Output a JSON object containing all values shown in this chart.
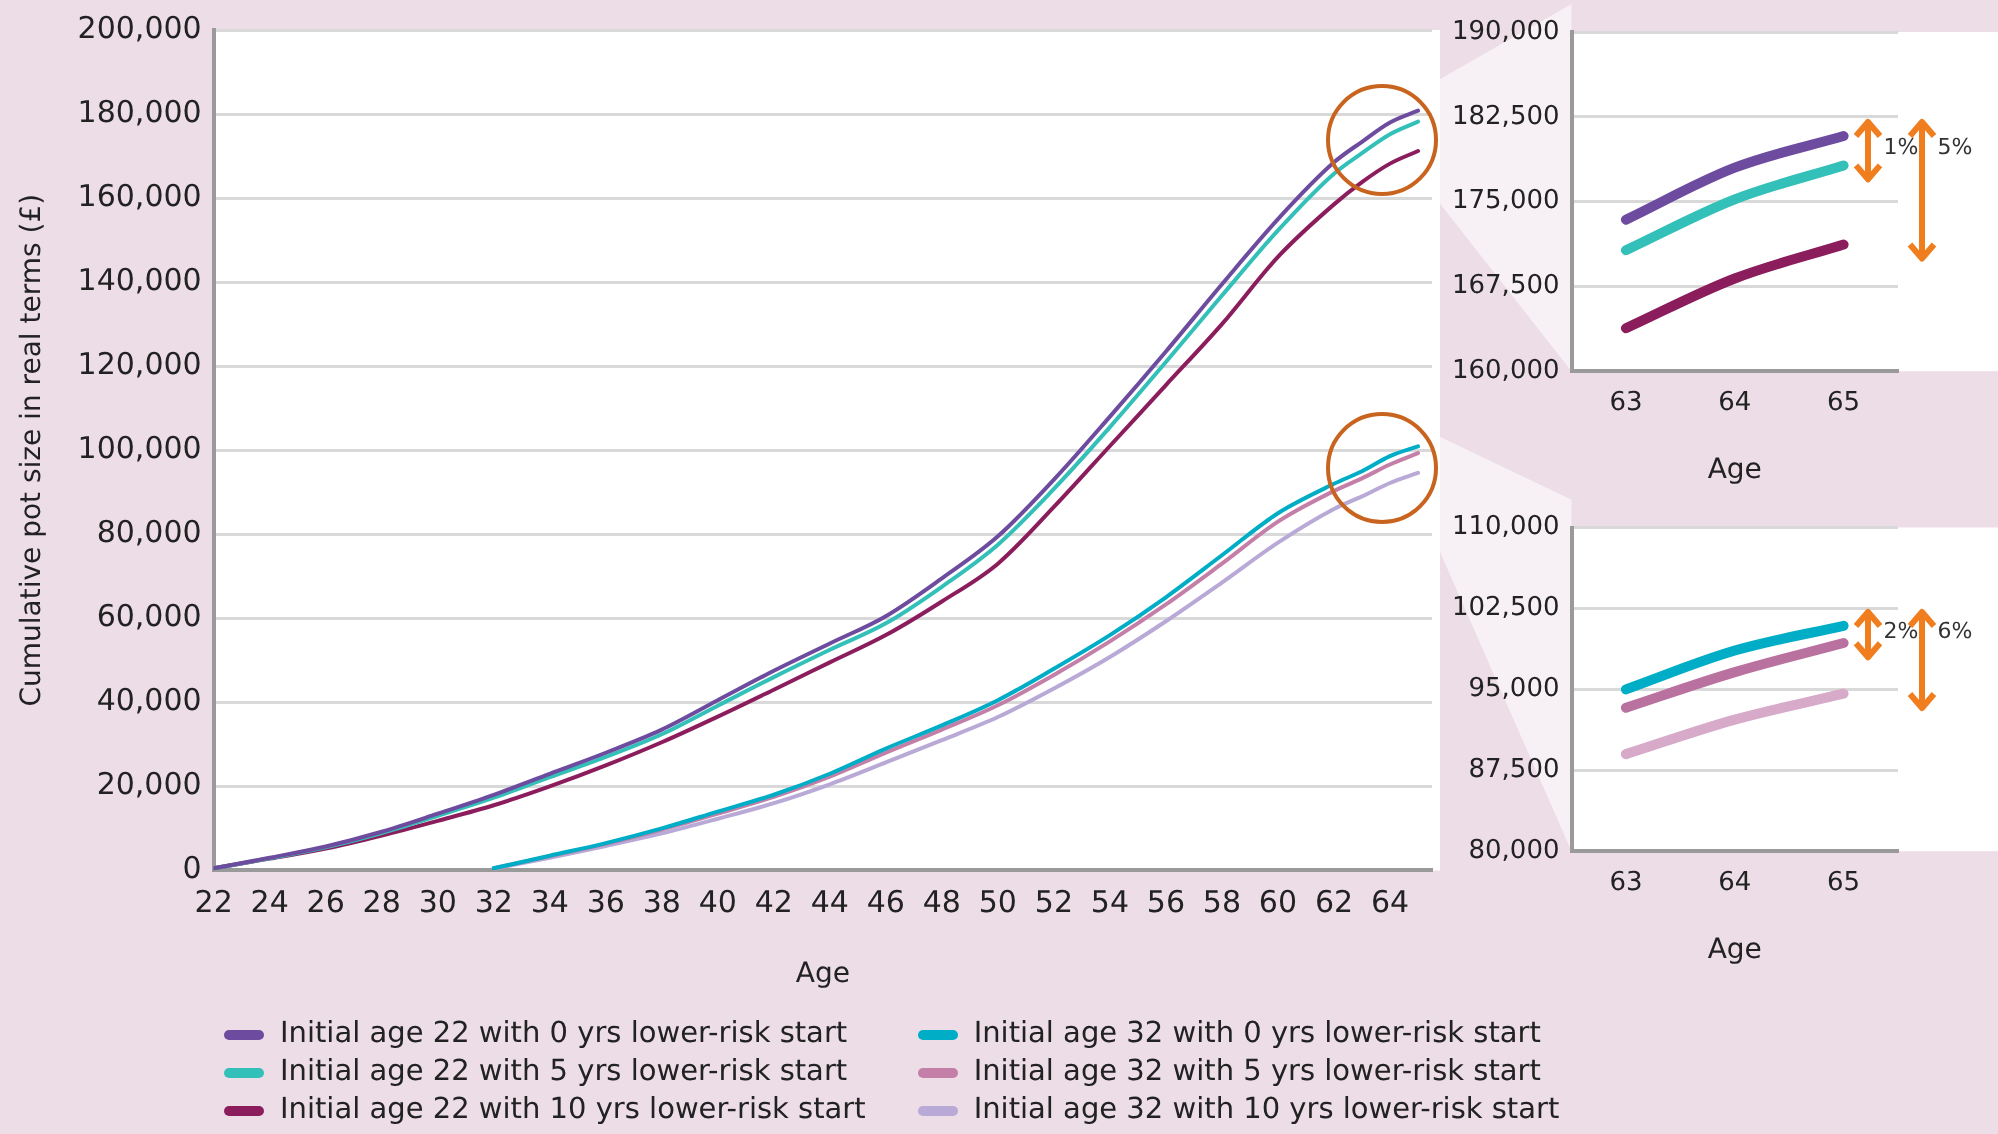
{
  "chart_data": [
    {
      "type": "line",
      "xlabel": "Age",
      "ylabel": "Cumulative pot size in real terms (£)",
      "xlim": [
        22,
        65.5
      ],
      "xticks": [
        22,
        24,
        26,
        28,
        30,
        32,
        34,
        36,
        38,
        40,
        42,
        44,
        46,
        48,
        50,
        52,
        54,
        56,
        58,
        60,
        62,
        64
      ],
      "ylim": [
        0,
        200000
      ],
      "yticks": [
        {
          "value": 0,
          "label": "0"
        },
        {
          "value": 20000,
          "label": "20,000"
        },
        {
          "value": 40000,
          "label": "40,000"
        },
        {
          "value": 60000,
          "label": "60,000"
        },
        {
          "value": 80000,
          "label": "80,000"
        },
        {
          "value": 100000,
          "label": "100,000"
        },
        {
          "value": 120000,
          "label": "120,000"
        },
        {
          "value": 140000,
          "label": "140,000"
        },
        {
          "value": 160000,
          "label": "160,000"
        },
        {
          "value": 180000,
          "label": "180,000"
        },
        {
          "value": 200000,
          "label": "200,000"
        }
      ],
      "grid": "y",
      "legend": "bottom",
      "series": [
        {
          "name": "Initial age 22 with 0 yrs lower-risk start",
          "color": "#6d4c9f",
          "x": [
            22,
            24,
            26,
            28,
            30,
            32,
            34,
            36,
            38,
            40,
            42,
            44,
            46,
            48,
            50,
            52,
            54,
            56,
            58,
            60,
            62,
            63,
            64,
            65
          ],
          "values": [
            500,
            3000,
            5700,
            9200,
            13500,
            18000,
            23000,
            28000,
            33500,
            40500,
            47500,
            54000,
            60500,
            69500,
            79500,
            93000,
            108000,
            123500,
            139500,
            155000,
            168500,
            173400,
            178000,
            180800
          ]
        },
        {
          "name": "Initial age 22 with 5 yrs lower-risk start",
          "color": "#33c0b8",
          "x": [
            22,
            24,
            26,
            28,
            30,
            32,
            34,
            36,
            38,
            40,
            42,
            44,
            46,
            48,
            50,
            52,
            54,
            56,
            58,
            60,
            62,
            63,
            64,
            65
          ],
          "values": [
            500,
            2900,
            5500,
            8900,
            13000,
            17300,
            22200,
            27000,
            32400,
            39200,
            46000,
            52500,
            58800,
            67500,
            77500,
            90800,
            105500,
            121000,
            136800,
            152300,
            165800,
            170700,
            175200,
            178200
          ]
        },
        {
          "name": "Initial age 22 with 10 yrs lower-risk start",
          "color": "#8c1d5d",
          "x": [
            22,
            24,
            26,
            28,
            30,
            32,
            34,
            36,
            38,
            40,
            42,
            44,
            46,
            48,
            50,
            52,
            54,
            56,
            58,
            60,
            62,
            63,
            64,
            65
          ],
          "values": [
            500,
            2800,
            5200,
            8300,
            11800,
            15500,
            20000,
            25000,
            30500,
            36600,
            43000,
            49500,
            56000,
            64000,
            73000,
            86500,
            101000,
            115500,
            130000,
            146000,
            158500,
            163800,
            168200,
            171200
          ]
        },
        {
          "name": "Initial age 32 with 0 yrs lower-risk start",
          "color": "#00adc6",
          "x": [
            32,
            34,
            36,
            38,
            40,
            42,
            44,
            46,
            48,
            50,
            52,
            54,
            56,
            58,
            60,
            62,
            63,
            64,
            65
          ],
          "values": [
            500,
            3500,
            6500,
            10000,
            14000,
            18000,
            23000,
            29000,
            34500,
            40500,
            48000,
            56000,
            65000,
            75000,
            85000,
            92000,
            95000,
            98600,
            100900
          ]
        },
        {
          "name": "Initial age 32 with 5 yrs lower-risk start",
          "color": "#c47fa8",
          "x": [
            32,
            34,
            36,
            38,
            40,
            42,
            44,
            46,
            48,
            50,
            52,
            54,
            56,
            58,
            60,
            62,
            63,
            64,
            65
          ],
          "values": [
            500,
            3400,
            6300,
            9700,
            13500,
            17500,
            22300,
            28000,
            33500,
            39300,
            46500,
            54500,
            63300,
            73000,
            83000,
            90300,
            93300,
            96600,
            99300
          ]
        },
        {
          "name": "Initial age 32 with 10 yrs lower-risk start",
          "color": "#b8a9d6",
          "x": [
            32,
            34,
            36,
            38,
            40,
            42,
            44,
            46,
            48,
            50,
            52,
            54,
            56,
            58,
            60,
            62,
            63,
            64,
            65
          ],
          "values": [
            400,
            3000,
            5800,
            8800,
            12300,
            16000,
            20500,
            25700,
            31000,
            36500,
            43300,
            50800,
            59300,
            68500,
            78000,
            86000,
            89000,
            92200,
            94600
          ]
        }
      ]
    },
    {
      "type": "line",
      "xlabel": "Age",
      "categories": [
        "63",
        "64",
        "65"
      ],
      "ylim": [
        160000,
        190000
      ],
      "yticks": [
        {
          "value": 160000,
          "label": "160,000"
        },
        {
          "value": 167500,
          "label": "167,500"
        },
        {
          "value": 175000,
          "label": "175,000"
        },
        {
          "value": 182500,
          "label": "182,500"
        },
        {
          "value": 190000,
          "label": "190,000"
        }
      ],
      "grid": "y",
      "annotations": [
        "1%",
        "5%"
      ],
      "series": [
        {
          "color": "#6d4c9f",
          "values": [
            173400,
            178000,
            180800
          ]
        },
        {
          "color": "#33c0b8",
          "values": [
            170700,
            175200,
            178200
          ]
        },
        {
          "color": "#8c1d5d",
          "values": [
            163800,
            168200,
            171200
          ]
        }
      ]
    },
    {
      "type": "line",
      "xlabel": "Age",
      "categories": [
        "63",
        "64",
        "65"
      ],
      "ylim": [
        80000,
        110000
      ],
      "yticks": [
        {
          "value": 80000,
          "label": "80,000"
        },
        {
          "value": 87500,
          "label": "87,500"
        },
        {
          "value": 95000,
          "label": "95,000"
        },
        {
          "value": 102500,
          "label": "102,500"
        },
        {
          "value": 110000,
          "label": "110,000"
        }
      ],
      "grid": "y",
      "annotations": [
        "2%",
        "6%"
      ],
      "series": [
        {
          "color": "#00adc6",
          "values": [
            95000,
            98600,
            100900
          ]
        },
        {
          "color": "#b9719f",
          "values": [
            93300,
            96600,
            99300
          ]
        },
        {
          "color": "#d6aac8",
          "values": [
            89000,
            92200,
            94600
          ]
        }
      ]
    }
  ]
}
